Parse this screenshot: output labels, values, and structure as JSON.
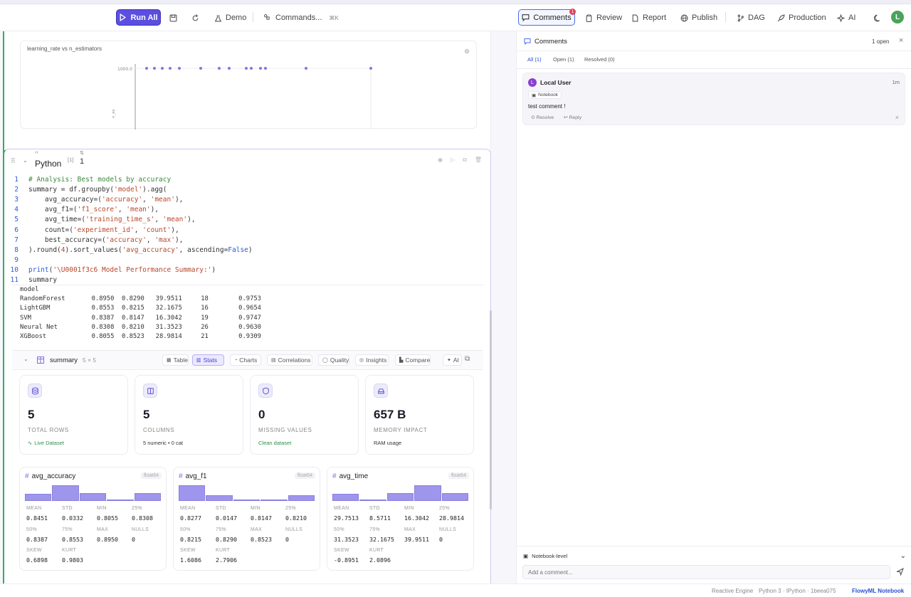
{
  "toolbar": {
    "run_all": "Run All",
    "demo": "Demo",
    "commands": "Commands...",
    "commands_shortcut": "⌘K",
    "comments": "Comments",
    "comments_badge": "1",
    "review": "Review",
    "report": "Report",
    "publish": "Publish",
    "dag": "DAG",
    "production": "Production",
    "ai": "AI",
    "avatar": "L"
  },
  "plot": {
    "title": "learning_rate vs n_estimators",
    "y_tick": "1000.0",
    "y_label": "n_es"
  },
  "cell": {
    "language": "Python",
    "exec_count": "[1]",
    "counter": "1",
    "code_lines": [
      "# Analysis: Best models by accuracy",
      "summary = df.groupby('model').agg(",
      "    avg_accuracy=('accuracy', 'mean'),",
      "    avg_f1=('f1_score', 'mean'),",
      "    avg_time=('training_time_s', 'mean'),",
      "    count=('experiment_id', 'count'),",
      "    best_accuracy=('accuracy', 'max'),",
      ").round(4).sort_values('avg_accuracy', ascending=False)",
      "",
      "print('\\U0001f3c6 Model Performance Summary:')",
      "summary"
    ],
    "output_lines": [
      "model",
      "RandomForest       0.8950  0.8290   39.9511     18        0.9753",
      "LightGBM           0.8553  0.8215   32.1675     16        0.9654",
      "SVM                0.8387  0.8147   16.3042     19        0.9747",
      "Neural Net         0.8308  0.8210   31.3523     26        0.9630",
      "XGBoost            0.8055  0.8523   28.9814     21        0.9309"
    ]
  },
  "dataframe": {
    "name": "summary",
    "shape": "5 × 5",
    "tabs": [
      "Table",
      "Stats",
      "Charts",
      "Correlations",
      "Quality",
      "Insights",
      "Compare",
      "AI"
    ],
    "active_tab": "Stats"
  },
  "stats": [
    {
      "value": "5",
      "label": "TOTAL ROWS",
      "sub": "Live Dataset",
      "icon": "database-icon"
    },
    {
      "value": "5",
      "label": "COLUMNS",
      "sub": "5 numeric • 0 cat",
      "icon": "columns-icon"
    },
    {
      "value": "0",
      "label": "MISSING VALUES",
      "sub": "Clean dataset",
      "icon": "shield-icon"
    },
    {
      "value": "657 B",
      "label": "MEMORY IMPACT",
      "sub": "RAM usage",
      "icon": "drive-icon"
    }
  ],
  "columns": [
    {
      "name": "avg_accuracy",
      "type": "float64",
      "hist": [
        0.45,
        1.0,
        0.5,
        0.05,
        0.5
      ],
      "mean": "0.8451",
      "std": "0.0332",
      "min": "0.8055",
      "p25": "0.8308",
      "p50": "0.8387",
      "p75": "0.8553",
      "max": "0.8950",
      "nulls": "0",
      "skew": "0.6898",
      "kurt": "0.9803"
    },
    {
      "name": "avg_f1",
      "type": "float64",
      "hist": [
        1.0,
        0.35,
        0.05,
        0.05,
        0.35
      ],
      "mean": "0.8277",
      "std": "0.0147",
      "min": "0.8147",
      "p25": "0.8210",
      "p50": "0.8215",
      "p75": "0.8290",
      "max": "0.8523",
      "nulls": "0",
      "skew": "1.6086",
      "kurt": "2.7906"
    },
    {
      "name": "avg_time",
      "type": "float64",
      "hist": [
        0.45,
        0.05,
        0.5,
        1.0,
        0.5
      ],
      "mean": "29.7513",
      "std": "8.5711",
      "min": "16.3042",
      "p25": "28.9814",
      "p50": "31.3523",
      "p75": "32.1675",
      "max": "39.9511",
      "nulls": "0",
      "skew": "-0.8951",
      "kurt": "2.0896"
    }
  ],
  "stat_labels": {
    "mean": "MEAN",
    "std": "STD",
    "min": "MIN",
    "p25": "25%",
    "p50": "50%",
    "p75": "75%",
    "max": "MAX",
    "nulls": "NULLS",
    "skew": "SKEW",
    "kurt": "KURT"
  },
  "comments": {
    "title": "Comments",
    "open_count": "1 open",
    "tabs": [
      "All (1)",
      "Open (1)",
      "Resolved (0)"
    ],
    "item": {
      "avatar": "L",
      "author": "Local User",
      "time": "1m",
      "tag": "Notebook",
      "text": "test comment !",
      "resolve": "Resolve",
      "reply": "Reply"
    },
    "scope": "Notebook-level",
    "placeholder": "Add a comment..."
  },
  "footer": {
    "engine": "Reactive Engine",
    "kernel": "Python 3 · IPython · 1beea075",
    "brand": "FlowyML Notebook"
  }
}
